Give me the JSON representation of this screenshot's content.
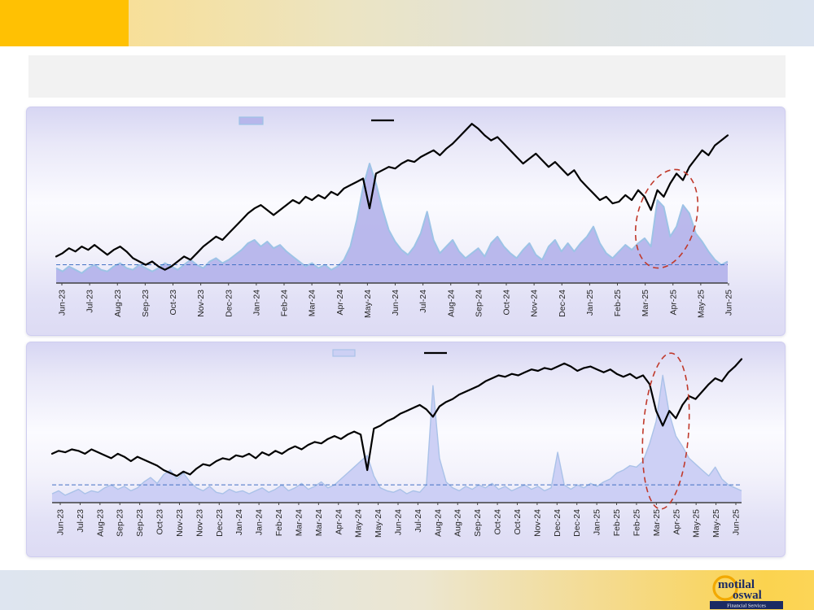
{
  "slide": {
    "title_bar": {
      "text": ""
    },
    "colors": {
      "header_accent": "#ffc103",
      "panel_background": "#dddbf4",
      "dashed_average_line": "#4472c4",
      "annotation_red": "#c0392b",
      "axis": "#404040",
      "label_text": "#262626"
    },
    "footer": {
      "logo": {
        "word1": "motilal",
        "word2": "oswal",
        "tagline": "Financial Services"
      }
    }
  },
  "chart_data": [
    {
      "type": "area",
      "title": "",
      "subtitle": "",
      "y_axis_visible": false,
      "ylim": [
        0,
        100
      ],
      "grid": false,
      "legend_position": "top-center",
      "legend": [
        {
          "name": "volatility-area-swatch",
          "label": ""
        },
        {
          "name": "index-line-swatch",
          "label": ""
        }
      ],
      "x_labels": [
        "Jun-23",
        "Jul-23",
        "Aug-23",
        "Sep-23",
        "Oct-23",
        "Nov-23",
        "Dec-23",
        "Jan-24",
        "Feb-24",
        "Mar-24",
        "Apr-24",
        "May-24",
        "Jun-24",
        "Jul-24",
        "Aug-24",
        "Sep-24",
        "Oct-24",
        "Nov-24",
        "Dec-24",
        "Jan-25",
        "Feb-25",
        "Mar-25",
        "Apr-25",
        "May-25",
        "Jun-25"
      ],
      "average_dashed_line": 11,
      "annotation_ellipse": {
        "cx": 786,
        "cy": 137,
        "rx": 36,
        "ry": 62,
        "rotate": 15,
        "color": "#c0392b"
      },
      "series": [
        {
          "name": "volatility-area",
          "type": "area",
          "fill": "#b2b1ea",
          "opacity": 0.9,
          "stroke": "#9dc3e6",
          "stroke_width": 2,
          "values": [
            9,
            7,
            10,
            8,
            6,
            9,
            11,
            8,
            7,
            10,
            12,
            9,
            8,
            11,
            9,
            7,
            9,
            12,
            10,
            8,
            11,
            14,
            11,
            9,
            13,
            15,
            12,
            14,
            17,
            20,
            24,
            26,
            22,
            25,
            21,
            23,
            19,
            16,
            13,
            10,
            12,
            9,
            11,
            8,
            10,
            14,
            22,
            38,
            58,
            72,
            60,
            45,
            32,
            25,
            20,
            17,
            22,
            30,
            43,
            26,
            18,
            22,
            26,
            19,
            15,
            18,
            21,
            16,
            24,
            28,
            22,
            18,
            15,
            20,
            24,
            17,
            14,
            22,
            26,
            19,
            24,
            19,
            24,
            28,
            34,
            24,
            18,
            15,
            19,
            23,
            20,
            24,
            27,
            22,
            50,
            46,
            28,
            34,
            47,
            42,
            30,
            25,
            19,
            14,
            11,
            13
          ]
        },
        {
          "name": "index-line",
          "type": "line",
          "stroke": "#000000",
          "stroke_width": 2.2,
          "values": [
            16,
            18,
            21,
            19,
            22,
            20,
            23,
            20,
            17,
            20,
            22,
            19,
            15,
            13,
            11,
            13,
            10,
            8,
            10,
            13,
            16,
            14,
            18,
            22,
            25,
            28,
            26,
            30,
            34,
            38,
            42,
            45,
            47,
            44,
            41,
            44,
            47,
            50,
            48,
            52,
            50,
            53,
            51,
            55,
            53,
            57,
            59,
            61,
            63,
            45,
            66,
            68,
            70,
            69,
            72,
            74,
            73,
            76,
            78,
            80,
            77,
            81,
            84,
            88,
            92,
            96,
            93,
            89,
            86,
            88,
            84,
            80,
            76,
            72,
            75,
            78,
            74,
            70,
            73,
            69,
            65,
            68,
            62,
            58,
            54,
            50,
            52,
            48,
            49,
            53,
            50,
            56,
            52,
            44,
            56,
            52,
            60,
            66,
            62,
            70,
            75,
            80,
            77,
            83,
            86,
            89
          ]
        }
      ]
    },
    {
      "type": "area",
      "title": "",
      "subtitle": "",
      "y_axis_visible": false,
      "ylim": [
        0,
        100
      ],
      "grid": false,
      "legend_position": "top-center",
      "legend": [
        {
          "name": "volatility-area-swatch",
          "label": ""
        },
        {
          "name": "index-line-swatch",
          "label": ""
        }
      ],
      "x_labels": [
        "Jun-23",
        "Jul-23",
        "Aug-23",
        "Sep-23",
        "Sep-23",
        "Oct-23",
        "Nov-23",
        "Nov-23",
        "Dec-23",
        "Jan-24",
        "Jan-24",
        "Feb-24",
        "Mar-24",
        "Mar-24",
        "Apr-24",
        "May-24",
        "May-24",
        "Jun-24",
        "Jul-24",
        "Aug-24",
        "Aug-24",
        "Sep-24",
        "Oct-24",
        "Oct-24",
        "Nov-24",
        "Dec-24",
        "Dec-24",
        "Jan-25",
        "Feb-25",
        "Feb-25",
        "Mar-25",
        "Apr-25",
        "May-25",
        "May-25",
        "Jun-25"
      ],
      "average_dashed_line": 12,
      "annotation_ellipse": {
        "cx": 785,
        "cy": 109,
        "rx": 28,
        "ry": 96,
        "rotate": 4,
        "color": "#c0392b"
      },
      "series": [
        {
          "name": "volatility-area",
          "type": "area",
          "fill": "#cacef4",
          "opacity": 0.95,
          "stroke": "#aac2e8",
          "stroke_width": 1.4,
          "values": [
            6,
            8,
            5,
            7,
            9,
            6,
            8,
            7,
            10,
            12,
            9,
            11,
            8,
            10,
            14,
            17,
            13,
            19,
            22,
            16,
            20,
            14,
            10,
            8,
            11,
            7,
            6,
            9,
            7,
            8,
            6,
            8,
            10,
            7,
            9,
            12,
            8,
            10,
            13,
            9,
            11,
            14,
            10,
            12,
            16,
            20,
            24,
            28,
            32,
            18,
            10,
            8,
            7,
            9,
            6,
            8,
            7,
            12,
            79,
            30,
            14,
            10,
            8,
            11,
            9,
            12,
            10,
            13,
            9,
            11,
            8,
            10,
            12,
            9,
            11,
            8,
            10,
            34,
            12,
            9,
            12,
            10,
            13,
            11,
            14,
            16,
            20,
            22,
            25,
            24,
            28,
            40,
            55,
            86,
            60,
            45,
            38,
            30,
            26,
            22,
            18,
            24,
            16,
            12,
            10,
            8
          ]
        },
        {
          "name": "index-line",
          "type": "line",
          "stroke": "#000000",
          "stroke_width": 2.2,
          "values": [
            33,
            35,
            34,
            36,
            35,
            33,
            36,
            34,
            32,
            30,
            33,
            31,
            28,
            31,
            29,
            27,
            25,
            22,
            20,
            18,
            21,
            19,
            23,
            26,
            25,
            28,
            30,
            29,
            32,
            31,
            33,
            30,
            34,
            32,
            35,
            33,
            36,
            38,
            36,
            39,
            41,
            40,
            43,
            45,
            43,
            46,
            48,
            46,
            22,
            50,
            52,
            55,
            57,
            60,
            62,
            64,
            66,
            63,
            58,
            65,
            68,
            70,
            73,
            75,
            77,
            79,
            82,
            84,
            86,
            85,
            87,
            86,
            88,
            90,
            89,
            91,
            90,
            92,
            94,
            92,
            89,
            91,
            92,
            90,
            88,
            90,
            87,
            85,
            87,
            84,
            86,
            80,
            62,
            52,
            62,
            57,
            66,
            72,
            70,
            75,
            80,
            84,
            82,
            88,
            92,
            97
          ]
        }
      ]
    }
  ]
}
